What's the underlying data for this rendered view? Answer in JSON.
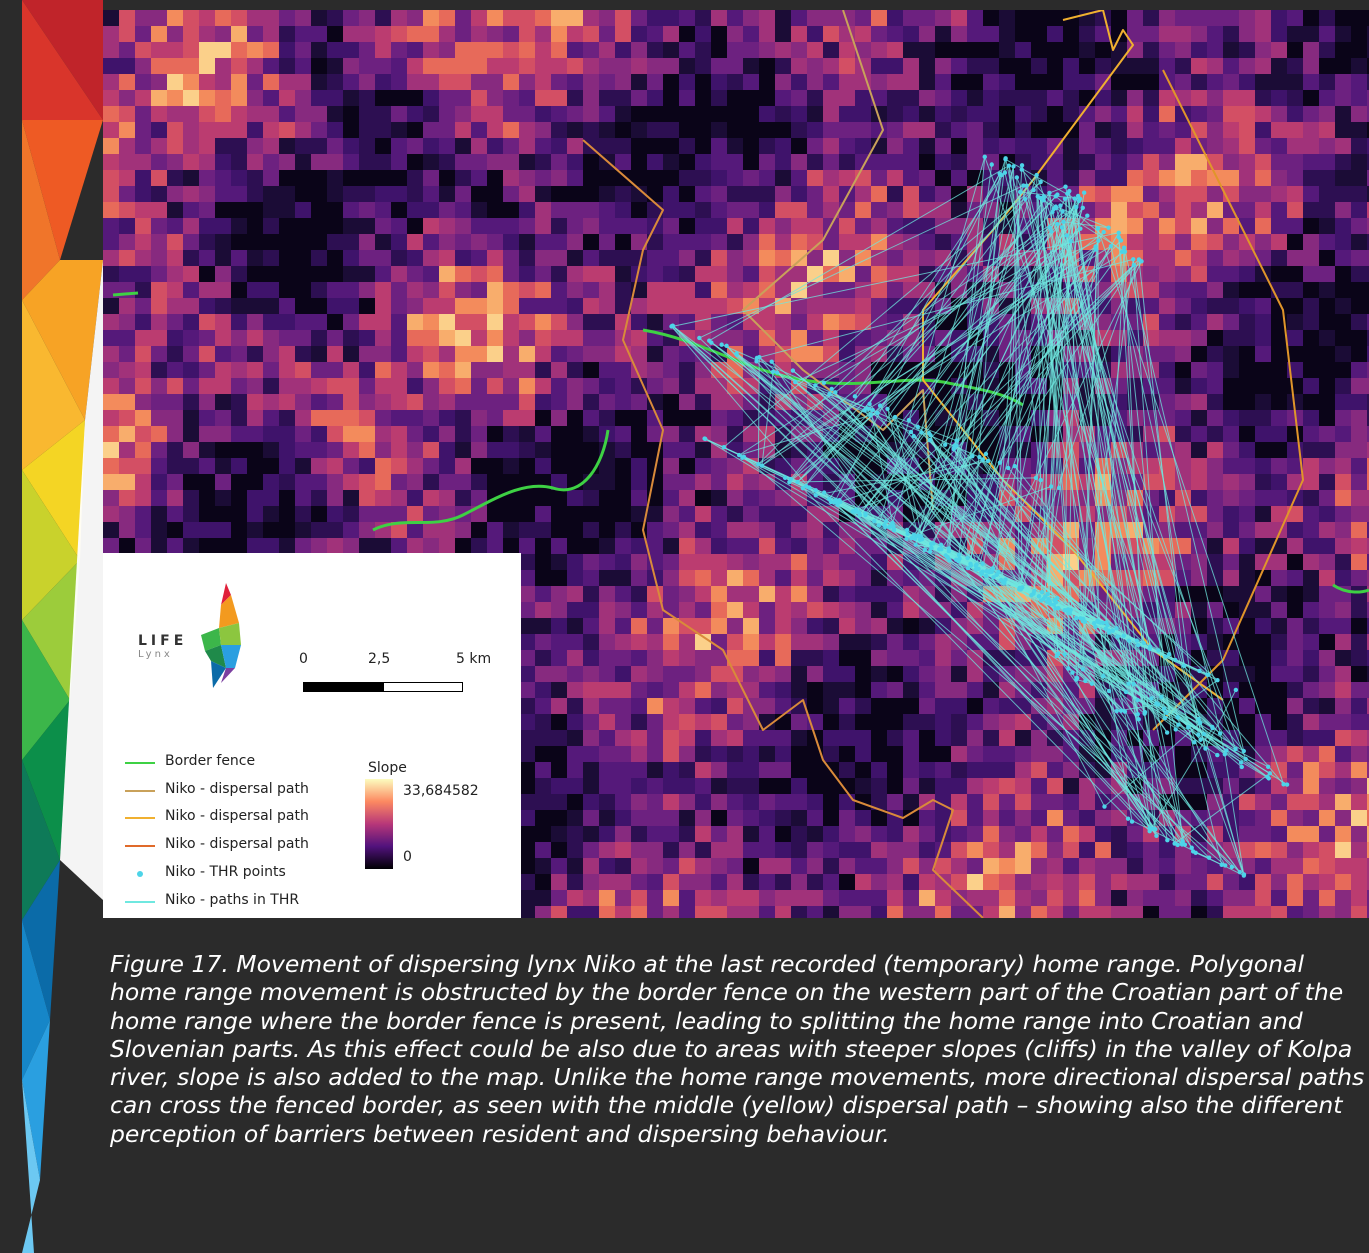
{
  "map": {
    "scale_labels": [
      "0",
      "2,5",
      "5 km"
    ],
    "logo": {
      "word_top": "LIFE",
      "word_bottom": "Lynx"
    },
    "legend": [
      {
        "label": "Border fence",
        "symbol": "line",
        "color": "#3ed144"
      },
      {
        "label": "Niko - dispersal path",
        "symbol": "line",
        "color": "#c9a15a"
      },
      {
        "label": "Niko - dispersal path",
        "symbol": "line",
        "color": "#f0b030"
      },
      {
        "label": "Niko - dispersal path",
        "symbol": "line",
        "color": "#e06a2a"
      },
      {
        "label": "Niko - THR points",
        "symbol": "dot",
        "color": "#4dd4e8"
      },
      {
        "label": "Niko - paths in THR",
        "symbol": "line",
        "color": "#6fe8e0"
      }
    ],
    "slope": {
      "title": "Slope",
      "max": "33,684582",
      "min": "0"
    }
  },
  "caption": "Figure 17. Movement of dispersing lynx Niko at the last recorded (temporary) home range. Polygonal home range movement is obstructed by the border fence on the western part of the Croatian part of the home range where the border fence is present, leading to splitting the home range into Croatian and Slovenian parts. As this effect could be also due to areas with steeper slopes (cliffs) in the valley of Kolpa river, slope is also added to the map. Unlike the home range movements, more directional dispersal paths can cross the fenced border, as seen with the middle (yellow) dispersal path – showing also the different perception of barriers between resident and dispersing behaviour.",
  "colors": {
    "fence": "#3ed144",
    "thr": "#4dd4e8",
    "stripe": [
      "#c0242a",
      "#ee5a24",
      "#f7a325",
      "#f4d524",
      "#9ccc3b",
      "#3cb64a",
      "#0c8f4a",
      "#0b6ba8",
      "#2a9fe0",
      "#6cc8f2"
    ]
  }
}
